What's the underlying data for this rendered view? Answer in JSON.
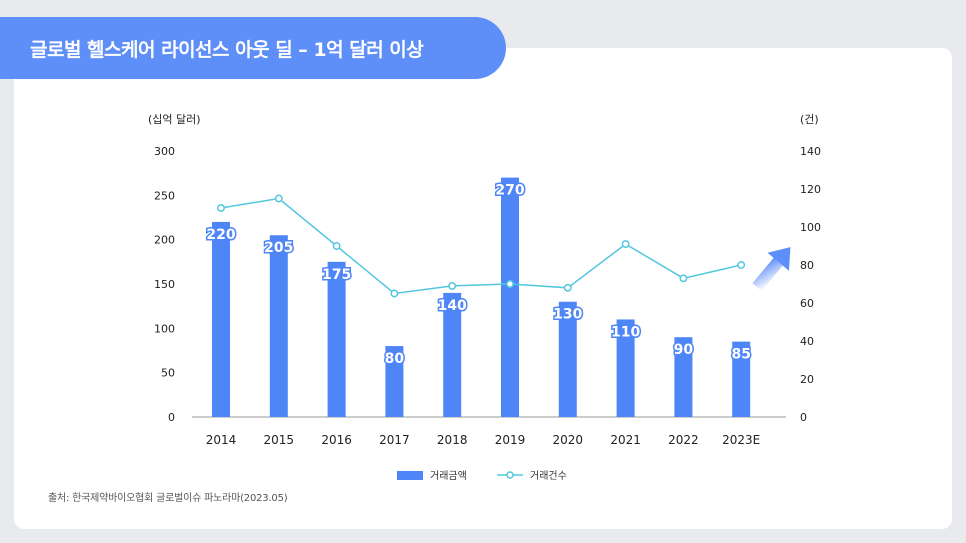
{
  "title": "글로벌 헬스케어 라이선스 아웃 딜 – 1억 달러 이상",
  "source": "출처: 한국제약바이오협회 글로벌이슈 파노라마(2023.05)",
  "colors": {
    "bar": "#4e86f7",
    "line": "#52c7de",
    "accent": "#5e8ef7"
  },
  "chart_data": {
    "type": "bar",
    "categories": [
      "2014",
      "2015",
      "2016",
      "2017",
      "2018",
      "2019",
      "2020",
      "2021",
      "2022",
      "2023E"
    ],
    "series": [
      {
        "name": "거래금액",
        "type": "bar",
        "axis": "left",
        "values": [
          220,
          205,
          175,
          80,
          140,
          270,
          130,
          110,
          90,
          85
        ]
      },
      {
        "name": "거래건수",
        "type": "line",
        "axis": "right",
        "values": [
          110,
          115,
          90,
          65,
          69,
          70,
          68,
          91,
          73,
          80
        ]
      }
    ],
    "y_left": {
      "label": "(십억 달러)",
      "min": 0,
      "max": 300,
      "ticks": [
        "0",
        "50",
        "100",
        "150",
        "200",
        "250",
        "300"
      ]
    },
    "y_right": {
      "label": "(건)",
      "min": 0,
      "max": 140,
      "ticks": [
        "0",
        "20",
        "40",
        "60",
        "80",
        "100",
        "120",
        "140"
      ]
    },
    "legend_position": "bottom-center",
    "grid": false
  }
}
